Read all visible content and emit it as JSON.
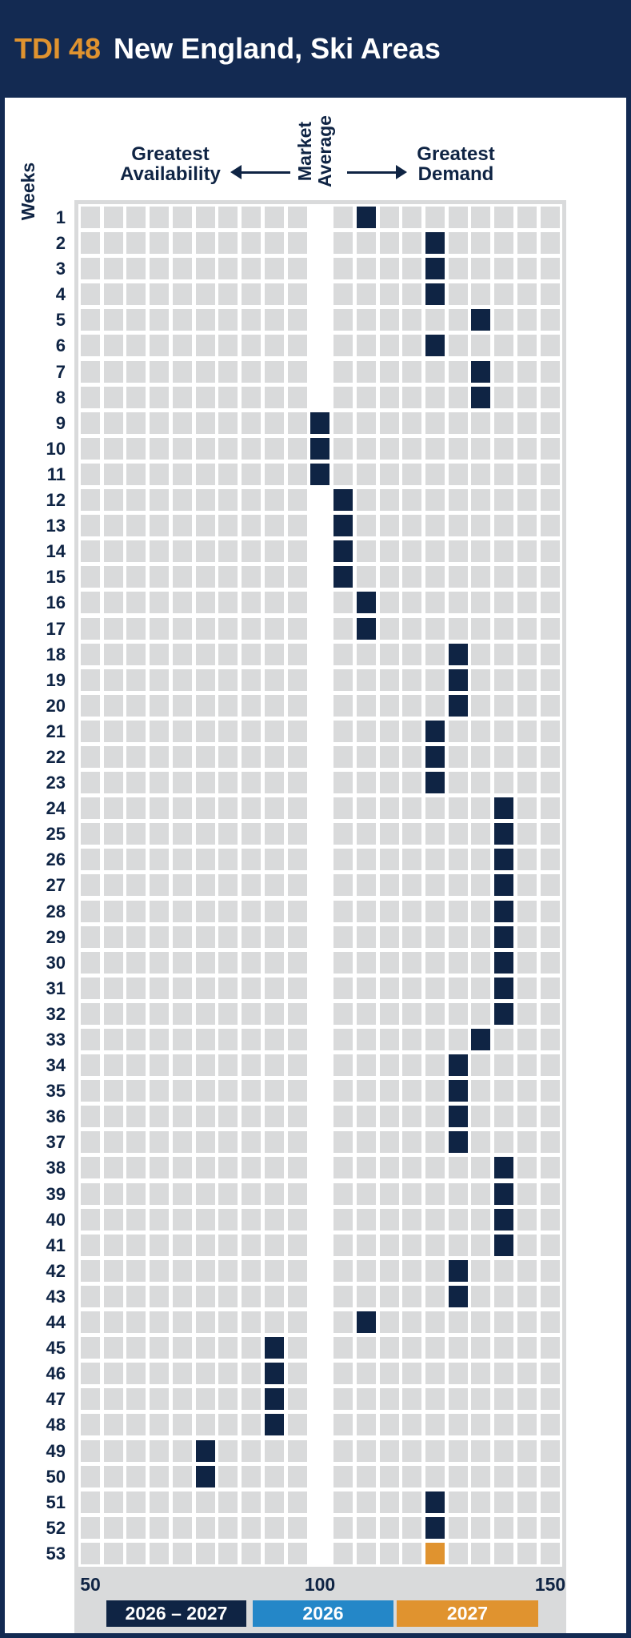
{
  "header": {
    "code": "TDI 48",
    "title": "New England, Ski Areas"
  },
  "direction_labels": {
    "availability_line1": "Greatest",
    "availability_line2": "Availability",
    "market_line1": "Market",
    "market_line2": "Average",
    "demand_line1": "Greatest",
    "demand_line2": "Demand"
  },
  "colors": {
    "navy": "#0f2444",
    "header_bg": "#132a52",
    "orange": "#e0932f",
    "blue": "#2487c8",
    "cell_gray": "#d9dadb",
    "white": "#ffffff"
  },
  "chart_data": {
    "type": "heatmap",
    "title": "TDI 48 New England, Ski Areas",
    "x_axis": {
      "min": 50,
      "max": 150,
      "cell_step": 5,
      "market_average": 100,
      "ticks": [
        "50",
        "100",
        "150"
      ]
    },
    "y_axis": {
      "label": "Weeks",
      "week_count": 53
    },
    "annotations": {
      "left": "Greatest Availability",
      "center": "Market Average",
      "right": "Greatest Demand"
    },
    "legend": [
      {
        "label": "2026 – 2027",
        "season_key": "both",
        "color": "#0f2444"
      },
      {
        "label": "2026",
        "season_key": "2026",
        "color": "#2487c8"
      },
      {
        "label": "2027",
        "season_key": "2027",
        "color": "#e0932f"
      }
    ],
    "values": [
      {
        "week": 1,
        "tdi": 110,
        "season": "both"
      },
      {
        "week": 2,
        "tdi": 125,
        "season": "both"
      },
      {
        "week": 3,
        "tdi": 125,
        "season": "both"
      },
      {
        "week": 4,
        "tdi": 125,
        "season": "both"
      },
      {
        "week": 5,
        "tdi": 135,
        "season": "both"
      },
      {
        "week": 6,
        "tdi": 125,
        "season": "both"
      },
      {
        "week": 7,
        "tdi": 135,
        "season": "both"
      },
      {
        "week": 8,
        "tdi": 135,
        "season": "both"
      },
      {
        "week": 9,
        "tdi": 100,
        "season": "both"
      },
      {
        "week": 10,
        "tdi": 100,
        "season": "both"
      },
      {
        "week": 11,
        "tdi": 100,
        "season": "both"
      },
      {
        "week": 12,
        "tdi": 105,
        "season": "both"
      },
      {
        "week": 13,
        "tdi": 105,
        "season": "both"
      },
      {
        "week": 14,
        "tdi": 105,
        "season": "both"
      },
      {
        "week": 15,
        "tdi": 105,
        "season": "both"
      },
      {
        "week": 16,
        "tdi": 110,
        "season": "both"
      },
      {
        "week": 17,
        "tdi": 110,
        "season": "both"
      },
      {
        "week": 18,
        "tdi": 130,
        "season": "both"
      },
      {
        "week": 19,
        "tdi": 130,
        "season": "both"
      },
      {
        "week": 20,
        "tdi": 130,
        "season": "both"
      },
      {
        "week": 21,
        "tdi": 125,
        "season": "both"
      },
      {
        "week": 22,
        "tdi": 125,
        "season": "both"
      },
      {
        "week": 23,
        "tdi": 125,
        "season": "both"
      },
      {
        "week": 24,
        "tdi": 140,
        "season": "both"
      },
      {
        "week": 25,
        "tdi": 140,
        "season": "both"
      },
      {
        "week": 26,
        "tdi": 140,
        "season": "both"
      },
      {
        "week": 27,
        "tdi": 140,
        "season": "both"
      },
      {
        "week": 28,
        "tdi": 140,
        "season": "both"
      },
      {
        "week": 29,
        "tdi": 140,
        "season": "both"
      },
      {
        "week": 30,
        "tdi": 140,
        "season": "both"
      },
      {
        "week": 31,
        "tdi": 140,
        "season": "both"
      },
      {
        "week": 32,
        "tdi": 140,
        "season": "both"
      },
      {
        "week": 33,
        "tdi": 135,
        "season": "both"
      },
      {
        "week": 34,
        "tdi": 130,
        "season": "both"
      },
      {
        "week": 35,
        "tdi": 130,
        "season": "both"
      },
      {
        "week": 36,
        "tdi": 130,
        "season": "both"
      },
      {
        "week": 37,
        "tdi": 130,
        "season": "both"
      },
      {
        "week": 38,
        "tdi": 140,
        "season": "both"
      },
      {
        "week": 39,
        "tdi": 140,
        "season": "both"
      },
      {
        "week": 40,
        "tdi": 140,
        "season": "both"
      },
      {
        "week": 41,
        "tdi": 140,
        "season": "both"
      },
      {
        "week": 42,
        "tdi": 130,
        "season": "both"
      },
      {
        "week": 43,
        "tdi": 130,
        "season": "both"
      },
      {
        "week": 44,
        "tdi": 110,
        "season": "both"
      },
      {
        "week": 45,
        "tdi": 90,
        "season": "both"
      },
      {
        "week": 46,
        "tdi": 90,
        "season": "both"
      },
      {
        "week": 47,
        "tdi": 90,
        "season": "both"
      },
      {
        "week": 48,
        "tdi": 90,
        "season": "both"
      },
      {
        "week": 49,
        "tdi": 75,
        "season": "both"
      },
      {
        "week": 50,
        "tdi": 75,
        "season": "both"
      },
      {
        "week": 51,
        "tdi": 125,
        "season": "both"
      },
      {
        "week": 52,
        "tdi": 125,
        "season": "both"
      },
      {
        "week": 53,
        "tdi": 125,
        "season": "2027"
      }
    ]
  }
}
